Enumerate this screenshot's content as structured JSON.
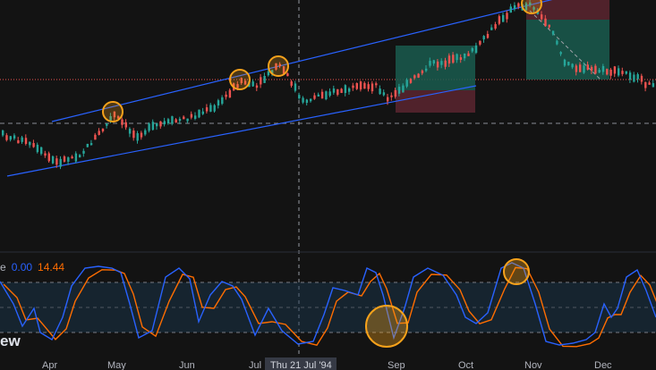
{
  "indicator": {
    "name_fragment": "e",
    "value_k": "0.00",
    "value_d": "14.44",
    "color_k": "#2962ff",
    "color_d": "#ff6d00"
  },
  "brand_fragment": "ew",
  "crosshair": {
    "date_label": "Thu 21 Jul '94"
  },
  "months": [
    "Apr",
    "May",
    "Jun",
    "Jul",
    "Sep",
    "Oct",
    "Nov",
    "Dec"
  ],
  "colors": {
    "background": "#131313",
    "up_candle": "#26a69a",
    "down_candle": "#ef5350",
    "channel": "#2962ff",
    "highlight": "#f7a21b",
    "long_target": "#1a6e5c",
    "long_stop": "#6e2a31"
  },
  "chart_data": {
    "type": "candlestick",
    "x_axis": [
      "Apr",
      "May",
      "Jun",
      "Jul",
      "Sep",
      "Oct",
      "Nov",
      "Dec"
    ],
    "price_trend": [
      150,
      170,
      155,
      142,
      130,
      120,
      95,
      88,
      80,
      88,
      75,
      70,
      62,
      45,
      10,
      18,
      40,
      80
    ],
    "stochastic": {
      "k": [
        0.0
      ],
      "d": [
        14.44
      ],
      "bands": [
        80,
        50,
        20
      ]
    },
    "annotations": [
      "ascending-channel",
      "long-position-tool",
      "highlight-circles"
    ]
  }
}
